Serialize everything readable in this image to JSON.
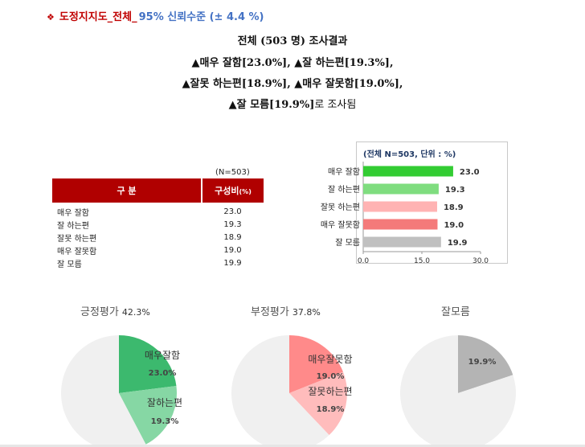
{
  "header": {
    "bullet": "❖",
    "title": "도정지지도_전체_",
    "confidence": "95% 신뢰수준 (± 4.4 %)"
  },
  "summary": {
    "line1": "전체 (503 명) 조사결과",
    "line2": "▲매우 잘함[23.0%], ▲잘 하는편[19.3%],",
    "line3": "▲잘못 하는편[18.9%], ▲매우 잘못함[19.0%],",
    "line4_bold": "▲잘 모름[19.9%]",
    "line4_tail": "로 조사됨"
  },
  "table": {
    "n_label": "(N=503)",
    "col1": "구      분",
    "col2": "구성비",
    "col2_unit": "(%)",
    "rows": [
      {
        "label": "매우 잘함",
        "value": "23.0"
      },
      {
        "label": "잘 하는편",
        "value": "19.3"
      },
      {
        "label": "잘못 하는편",
        "value": "18.9"
      },
      {
        "label": "매우 잘못함",
        "value": "19.0"
      },
      {
        "label": "잘 모름",
        "value": "19.9"
      }
    ]
  },
  "chart_data": [
    {
      "type": "bar",
      "orientation": "horizontal",
      "title": "(전체 N=503, 단위 : %)",
      "categories": [
        "매우 잘함",
        "잘 하는편",
        "잘못 하는편",
        "매우 잘못함",
        "잘 모름"
      ],
      "values": [
        23.0,
        19.3,
        18.9,
        19.0,
        19.9
      ],
      "data_labels": [
        "23.0",
        "19.3",
        "18.9",
        "19.0",
        "19.9"
      ],
      "colors": [
        "#33cc33",
        "#7fdd7f",
        "#ffb3b3",
        "#f47a7a",
        "#c0c0c0"
      ],
      "xlim": [
        0,
        30
      ],
      "xticks": [
        0,
        15,
        30
      ],
      "xtick_labels": [
        "0.0",
        "15.0",
        "30.0"
      ],
      "grid": false
    },
    {
      "type": "pie",
      "title": "긍정평가",
      "title_pct": "42.3%",
      "slices": [
        {
          "label": "매우잘함",
          "value": 23.0,
          "value_label": "23.0%",
          "color": "#3cb96e"
        },
        {
          "label": "잘하는편",
          "value": 19.3,
          "value_label": "19.3%",
          "color": "#86d7a4"
        },
        {
          "label": "",
          "value": 57.7,
          "value_label": "",
          "color": "#f0f0f0"
        }
      ]
    },
    {
      "type": "pie",
      "title": "부정평가",
      "title_pct": "37.8%",
      "slices": [
        {
          "label": "매우잘못함",
          "value": 19.0,
          "value_label": "19.0%",
          "color": "#ff8a8a"
        },
        {
          "label": "잘못하는편",
          "value": 18.9,
          "value_label": "18.9%",
          "color": "#ffbcbc"
        },
        {
          "label": "",
          "value": 62.1,
          "value_label": "",
          "color": "#f0f0f0"
        }
      ]
    },
    {
      "type": "pie",
      "title": "잘모름",
      "title_pct": "",
      "slices": [
        {
          "label": "",
          "value": 19.9,
          "value_label": "19.9%",
          "color": "#b4b4b4"
        },
        {
          "label": "",
          "value": 80.1,
          "value_label": "",
          "color": "#f0f0f0"
        }
      ]
    }
  ]
}
